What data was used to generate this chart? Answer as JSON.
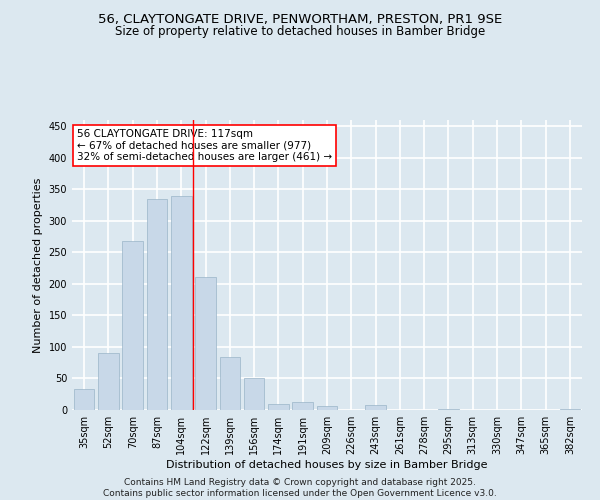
{
  "title_line1": "56, CLAYTONGATE DRIVE, PENWORTHAM, PRESTON, PR1 9SE",
  "title_line2": "Size of property relative to detached houses in Bamber Bridge",
  "xlabel": "Distribution of detached houses by size in Bamber Bridge",
  "ylabel": "Number of detached properties",
  "categories": [
    "35sqm",
    "52sqm",
    "70sqm",
    "87sqm",
    "104sqm",
    "122sqm",
    "139sqm",
    "156sqm",
    "174sqm",
    "191sqm",
    "209sqm",
    "226sqm",
    "243sqm",
    "261sqm",
    "278sqm",
    "295sqm",
    "313sqm",
    "330sqm",
    "347sqm",
    "365sqm",
    "382sqm"
  ],
  "values": [
    33,
    91,
    268,
    335,
    340,
    211,
    84,
    50,
    10,
    13,
    6,
    0,
    8,
    0,
    0,
    2,
    0,
    0,
    0,
    0,
    1
  ],
  "bar_color": "#c8d8e8",
  "bar_edge_color": "#9ab4c8",
  "vline_x_index": 4.5,
  "vline_color": "red",
  "annotation_text": "56 CLAYTONGATE DRIVE: 117sqm\n← 67% of detached houses are smaller (977)\n32% of semi-detached houses are larger (461) →",
  "annotation_box_color": "white",
  "annotation_box_edge_color": "red",
  "ylim": [
    0,
    460
  ],
  "yticks": [
    0,
    50,
    100,
    150,
    200,
    250,
    300,
    350,
    400,
    450
  ],
  "background_color": "#dce8f0",
  "plot_area_color": "#dce8f0",
  "grid_color": "white",
  "footer_line1": "Contains HM Land Registry data © Crown copyright and database right 2025.",
  "footer_line2": "Contains public sector information licensed under the Open Government Licence v3.0.",
  "title_fontsize": 9.5,
  "subtitle_fontsize": 8.5,
  "axis_label_fontsize": 8,
  "tick_fontsize": 7,
  "annotation_fontsize": 7.5,
  "footer_fontsize": 6.5
}
